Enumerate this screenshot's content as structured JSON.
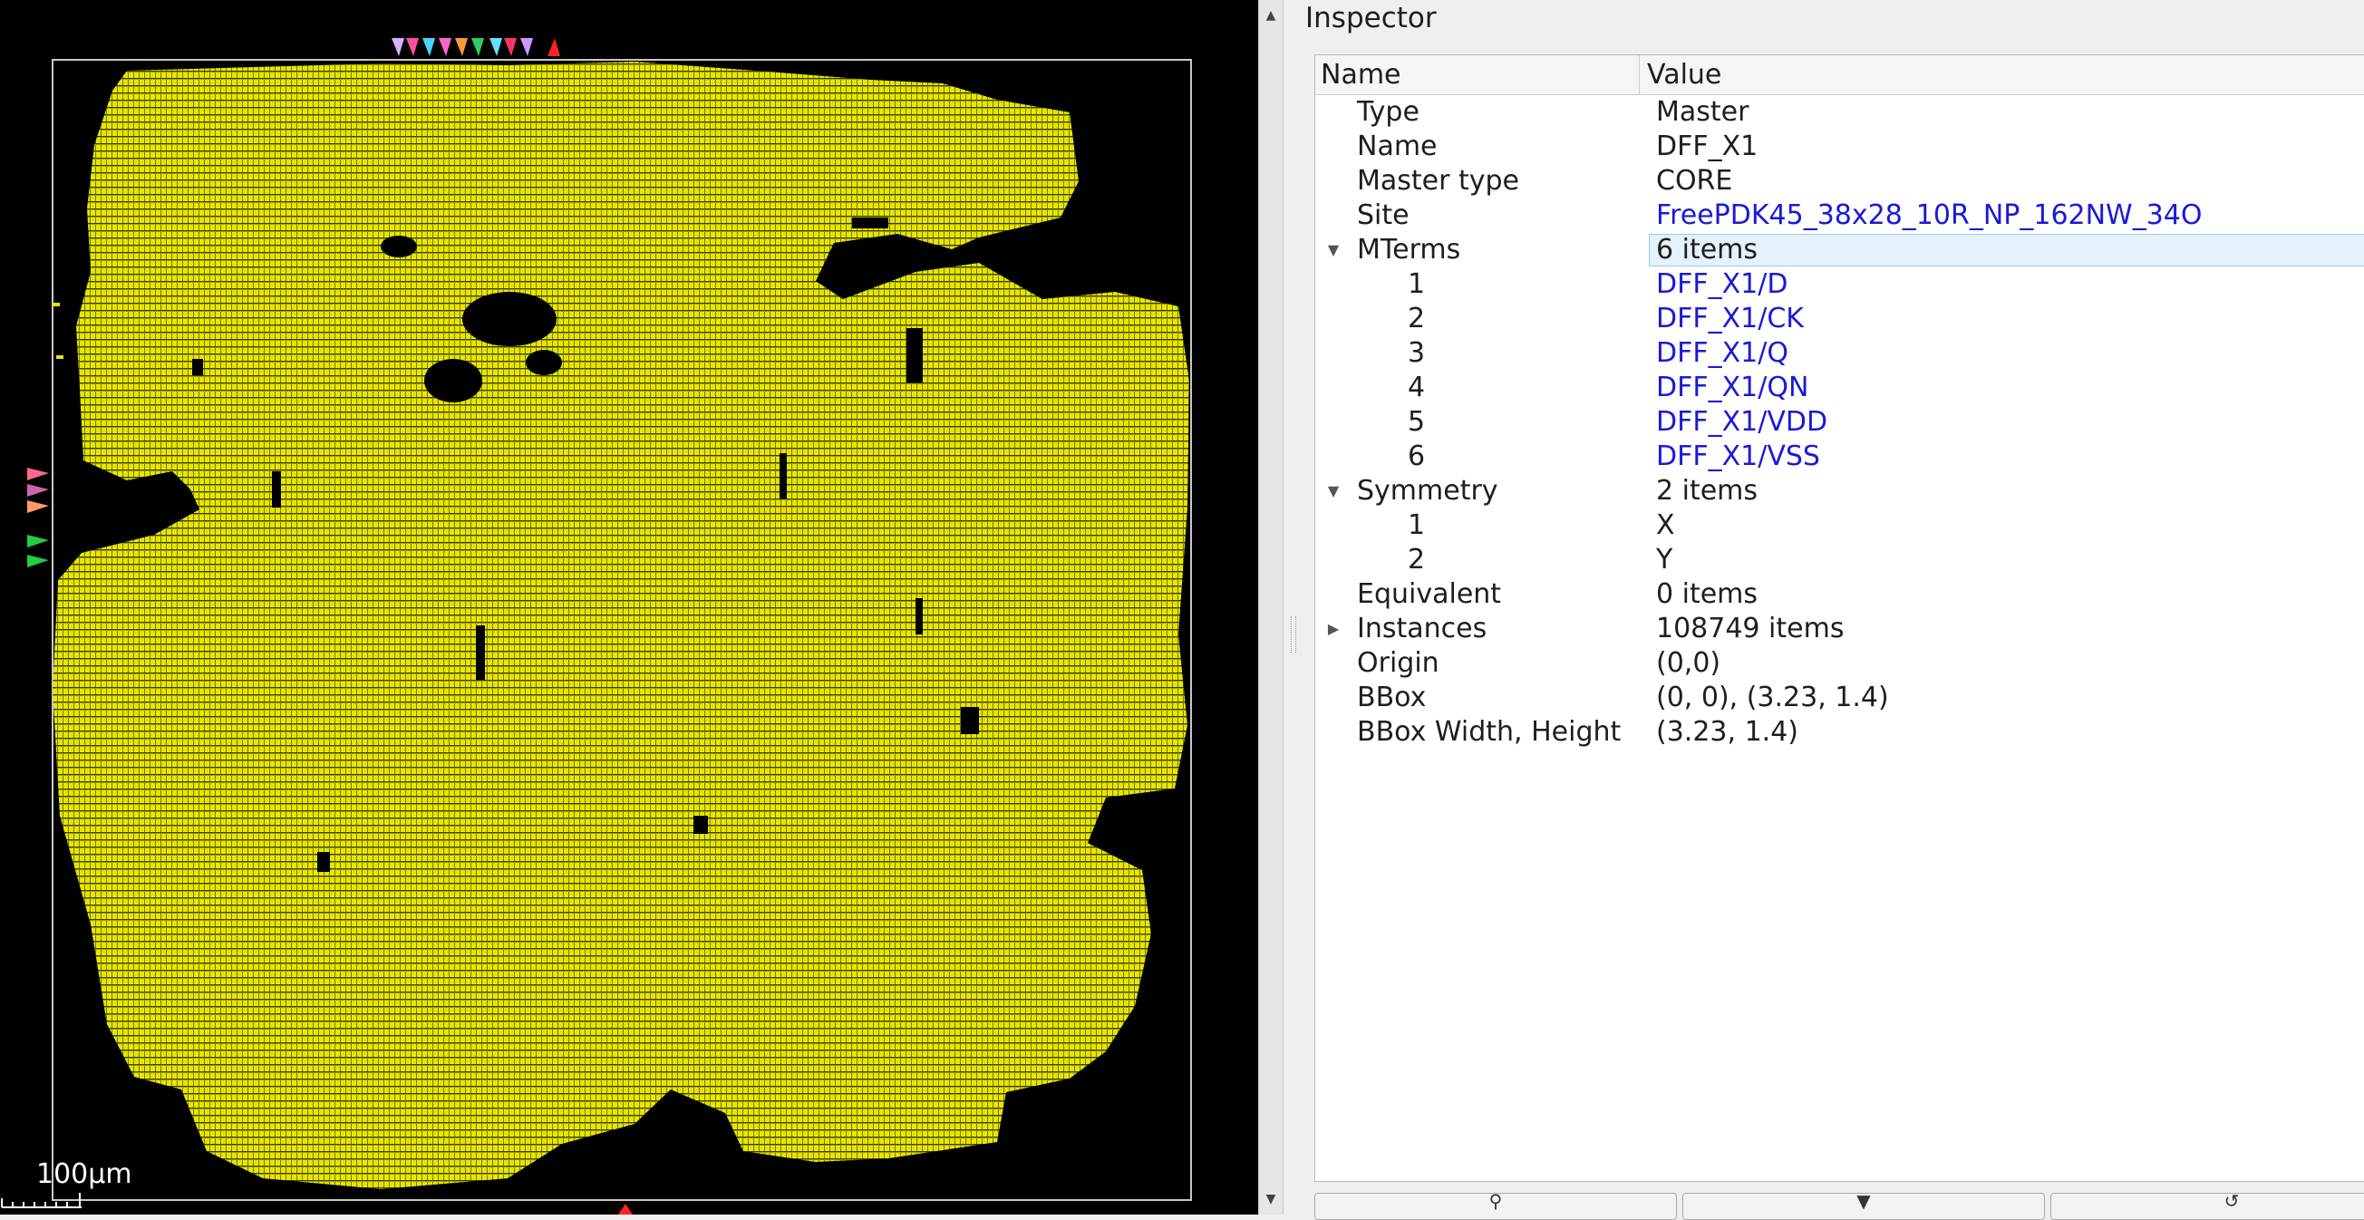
{
  "layout_view": {
    "scale_bar_label": "100μm",
    "colors": {
      "background": "#000000",
      "instances": "#e6e600",
      "boundary": "#c8c8c8"
    },
    "icons": [
      "scale-bar-icon"
    ]
  },
  "inspector": {
    "title": "Inspector",
    "columns": {
      "name": "Name",
      "value": "Value"
    },
    "rows": [
      {
        "name": "Type",
        "value": "Master"
      },
      {
        "name": "Name",
        "value": "DFF_X1"
      },
      {
        "name": "Master type",
        "value": "CORE"
      },
      {
        "name": "Site",
        "value": "FreePDK45_38x28_10R_NP_162NW_34O"
      },
      {
        "name": "MTerms",
        "value": "6 items"
      },
      {
        "name": "1",
        "value": "DFF_X1/D"
      },
      {
        "name": "2",
        "value": "DFF_X1/CK"
      },
      {
        "name": "3",
        "value": "DFF_X1/Q"
      },
      {
        "name": "4",
        "value": "DFF_X1/QN"
      },
      {
        "name": "5",
        "value": "DFF_X1/VDD"
      },
      {
        "name": "6",
        "value": "DFF_X1/VSS"
      },
      {
        "name": "Symmetry",
        "value": "2 items"
      },
      {
        "name": "1",
        "value": "X"
      },
      {
        "name": "2",
        "value": "Y"
      },
      {
        "name": "Equivalent",
        "value": "0 items"
      },
      {
        "name": "Instances",
        "value": "108749 items"
      },
      {
        "name": "Origin",
        "value": "(0,0)"
      },
      {
        "name": "BBox",
        "value": "(0, 0), (3.23, 1.4)"
      },
      {
        "name": "BBox Width, Height",
        "value": "(3.23, 1.4)"
      }
    ],
    "link_color": "#1a1ad6",
    "selected_row": "MTerms"
  },
  "bottom_buttons": [
    {
      "icon": "pin-icon"
    },
    {
      "icon": "highlight-icon"
    },
    {
      "icon": "refresh-icon"
    }
  ]
}
